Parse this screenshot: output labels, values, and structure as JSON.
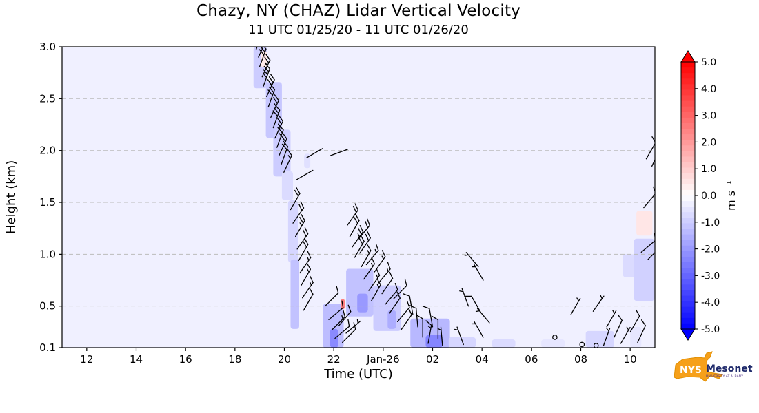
{
  "chart_data": {
    "type": "heatmap",
    "title": "Chazy, NY (CHAZ) Lidar Vertical Velocity",
    "subtitle": "11 UTC 01/25/20 - 11 UTC 01/26/20",
    "xlabel": "Time (UTC)",
    "ylabel": "Height (km)",
    "x_axis": {
      "min": 11,
      "max": 35,
      "tick_values": [
        12,
        14,
        16,
        18,
        20,
        22,
        24,
        26,
        28,
        30,
        32,
        34
      ],
      "tick_labels": [
        "12",
        "14",
        "16",
        "18",
        "20",
        "22",
        "Jan-26",
        "02",
        "04",
        "06",
        "08",
        "10"
      ]
    },
    "y_axis": {
      "min": 0.1,
      "max": 3.0,
      "tick_values": [
        3.0,
        2.5,
        2.0,
        1.5,
        1.0,
        0.5,
        0.1
      ],
      "tick_labels": [
        "3.0",
        "2.5",
        "2.0",
        "1.5",
        "1.0",
        "0.5",
        "0.1"
      ],
      "grid_values": [
        2.5,
        2.0,
        1.5,
        1.0,
        0.5
      ]
    },
    "grid": "dashed",
    "background_velocity": -0.3,
    "colorbar": {
      "label": "m s⁻¹",
      "min": -5.0,
      "max": 5.0,
      "extend": "both",
      "tick_values": [
        5.0,
        4.0,
        3.0,
        2.0,
        1.0,
        0.0,
        -1.0,
        -2.0,
        -3.0,
        -4.0,
        -5.0
      ],
      "tick_labels": [
        "5.0",
        "4.0",
        "3.0",
        "2.0",
        "1.0",
        "0.0",
        "-1.0",
        "-2.0",
        "-3.0",
        "-4.0",
        "-5.0"
      ],
      "colormap": {
        "positive": "#ff0000",
        "zero": "#ffffff",
        "negative": "#0000ff"
      }
    },
    "velocity_patches": [
      [
        18.75,
        19.3,
        2.6,
        3.0,
        -1.0
      ],
      [
        19.05,
        19.3,
        2.8,
        2.96,
        0.4
      ],
      [
        19.25,
        19.9,
        2.12,
        2.66,
        -1.1
      ],
      [
        19.55,
        20.25,
        1.75,
        2.2,
        -1.0
      ],
      [
        19.9,
        20.35,
        1.52,
        1.8,
        -0.7
      ],
      [
        20.15,
        20.55,
        0.92,
        1.52,
        -0.8
      ],
      [
        20.25,
        20.6,
        0.28,
        0.95,
        -1.2
      ],
      [
        20.8,
        21.05,
        1.83,
        1.97,
        -0.6
      ],
      [
        21.55,
        22.4,
        0.1,
        0.52,
        -1.3
      ],
      [
        21.85,
        22.18,
        0.1,
        0.28,
        -2.3
      ],
      [
        22.28,
        22.45,
        0.47,
        0.57,
        2.5
      ],
      [
        22.5,
        23.6,
        0.4,
        0.86,
        -1.2
      ],
      [
        22.95,
        23.38,
        0.44,
        0.62,
        -2.0
      ],
      [
        23.6,
        24.72,
        0.26,
        0.7,
        -1.0
      ],
      [
        24.18,
        24.52,
        0.28,
        0.46,
        -1.6
      ],
      [
        25.1,
        26.7,
        0.1,
        0.38,
        -1.4
      ],
      [
        25.72,
        26.4,
        0.1,
        0.22,
        -2.4
      ],
      [
        26.65,
        27.75,
        0.1,
        0.2,
        -0.8
      ],
      [
        28.4,
        29.35,
        0.1,
        0.18,
        -0.7
      ],
      [
        30.4,
        31.35,
        0.1,
        0.18,
        -0.5
      ],
      [
        32.2,
        33.35,
        0.1,
        0.26,
        -0.8
      ],
      [
        33.7,
        34.3,
        0.78,
        1.0,
        -0.7
      ],
      [
        34.15,
        34.98,
        0.55,
        1.15,
        -0.9
      ],
      [
        34.25,
        34.9,
        1.18,
        1.42,
        0.5
      ],
      [
        34.0,
        34.45,
        0.1,
        0.3,
        -0.5
      ]
    ],
    "wind_barbs": [
      [
        18.85,
        2.97,
        20,
        30
      ],
      [
        18.95,
        2.9,
        25,
        25
      ],
      [
        19.0,
        2.81,
        20,
        30
      ],
      [
        19.1,
        2.71,
        25,
        25
      ],
      [
        19.15,
        2.62,
        20,
        35
      ],
      [
        19.28,
        2.52,
        25,
        30
      ],
      [
        19.35,
        2.42,
        20,
        30
      ],
      [
        19.45,
        2.32,
        25,
        25
      ],
      [
        19.55,
        2.22,
        20,
        30
      ],
      [
        19.62,
        2.12,
        25,
        25
      ],
      [
        19.7,
        2.03,
        20,
        25
      ],
      [
        19.78,
        1.95,
        25,
        20
      ],
      [
        19.88,
        1.87,
        20,
        20
      ],
      [
        19.98,
        1.79,
        25,
        15
      ],
      [
        20.5,
        1.72,
        60,
        3
      ],
      [
        20.9,
        1.93,
        60,
        3
      ],
      [
        21.85,
        1.95,
        70,
        3
      ],
      [
        20.25,
        1.43,
        30,
        20
      ],
      [
        20.35,
        1.3,
        35,
        20
      ],
      [
        20.45,
        1.17,
        30,
        25
      ],
      [
        20.52,
        1.05,
        35,
        20
      ],
      [
        20.58,
        0.94,
        30,
        20
      ],
      [
        20.63,
        0.82,
        35,
        15
      ],
      [
        20.68,
        0.7,
        30,
        15
      ],
      [
        20.73,
        0.58,
        35,
        15
      ],
      [
        20.78,
        0.46,
        30,
        10
      ],
      [
        21.65,
        0.5,
        45,
        10
      ],
      [
        21.8,
        0.37,
        50,
        10
      ],
      [
        21.92,
        0.27,
        45,
        15
      ],
      [
        22.05,
        0.19,
        50,
        10
      ],
      [
        22.2,
        0.31,
        40,
        10
      ],
      [
        22.35,
        0.15,
        45,
        10
      ],
      [
        22.5,
        0.24,
        50,
        5
      ],
      [
        22.55,
        1.28,
        35,
        20
      ],
      [
        22.65,
        1.17,
        30,
        20
      ],
      [
        22.75,
        1.07,
        35,
        25
      ],
      [
        22.85,
        0.97,
        30,
        20
      ],
      [
        22.97,
        1.14,
        40,
        20
      ],
      [
        23.05,
        1.01,
        35,
        20
      ],
      [
        23.12,
        0.88,
        30,
        15
      ],
      [
        23.22,
        0.76,
        35,
        15
      ],
      [
        23.32,
        0.9,
        40,
        15
      ],
      [
        23.42,
        0.65,
        35,
        15
      ],
      [
        23.52,
        0.55,
        30,
        15
      ],
      [
        23.65,
        0.83,
        35,
        15
      ],
      [
        23.8,
        0.72,
        40,
        15
      ],
      [
        23.95,
        0.62,
        35,
        10
      ],
      [
        24.1,
        0.52,
        40,
        10
      ],
      [
        24.25,
        0.43,
        35,
        10
      ],
      [
        24.42,
        0.57,
        45,
        10
      ],
      [
        24.58,
        0.35,
        40,
        10
      ],
      [
        24.72,
        0.27,
        35,
        10
      ],
      [
        25.2,
        0.42,
        350,
        10
      ],
      [
        25.4,
        0.3,
        355,
        10
      ],
      [
        25.6,
        0.2,
        0,
        10
      ],
      [
        25.82,
        0.14,
        10,
        15
      ],
      [
        26.0,
        0.3,
        350,
        10
      ],
      [
        26.22,
        0.19,
        0,
        10
      ],
      [
        26.4,
        0.12,
        355,
        5
      ],
      [
        27.25,
        0.13,
        340,
        5
      ],
      [
        27.45,
        0.5,
        340,
        5
      ],
      [
        27.85,
        0.88,
        320,
        5
      ],
      [
        28.05,
        0.75,
        330,
        5
      ],
      [
        27.95,
        0.44,
        330,
        10
      ],
      [
        28.3,
        0.34,
        320,
        5
      ],
      [
        28.05,
        0.2,
        330,
        5
      ],
      [
        30.95,
        0.2,
        0,
        0
      ],
      [
        32.05,
        0.13,
        0,
        0
      ],
      [
        32.62,
        0.12,
        0,
        0
      ],
      [
        31.6,
        0.42,
        30,
        5
      ],
      [
        32.5,
        0.45,
        35,
        5
      ],
      [
        33.05,
        0.3,
        30,
        5
      ],
      [
        33.35,
        0.2,
        25,
        10
      ],
      [
        33.62,
        0.14,
        30,
        5
      ],
      [
        32.92,
        0.12,
        20,
        5
      ],
      [
        34.0,
        0.25,
        30,
        10
      ],
      [
        34.3,
        0.15,
        25,
        10
      ],
      [
        34.45,
        1.02,
        50,
        10
      ],
      [
        34.72,
        0.95,
        45,
        15
      ],
      [
        34.55,
        1.45,
        40,
        10
      ],
      [
        34.65,
        1.92,
        30,
        10
      ],
      [
        34.88,
        1.85,
        25,
        5
      ]
    ],
    "colors": {
      "barb": "#000000",
      "grid": "#bbbbbb",
      "spine": "#000000"
    }
  },
  "logo": {
    "nys": "NYS",
    "mesonet": "Mesonet",
    "tagline": "UNIVERSITY AT ALBANY",
    "orange": "#F6A01A",
    "navy": "#1F2A6B",
    "purple": "#4B2E83"
  }
}
